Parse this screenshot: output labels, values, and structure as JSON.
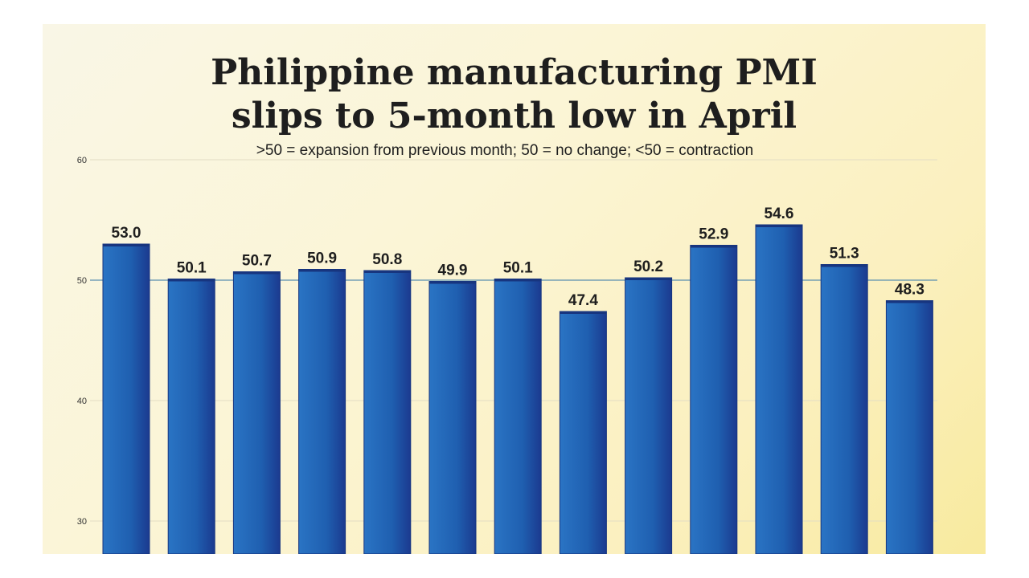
{
  "chart_data": {
    "type": "bar",
    "title": "Philippine manufacturing PMI slips to 5-month low in April",
    "title_lines": [
      "Philippine manufacturing PMI",
      "slips to 5-month low in April"
    ],
    "subtitle": ">50 = expansion from previous month; 50 = no change; <50 = contraction",
    "values": [
      53.0,
      50.1,
      50.7,
      50.9,
      50.8,
      49.9,
      50.1,
      47.4,
      50.2,
      52.9,
      54.6,
      51.3,
      48.3
    ],
    "value_labels": [
      "53.0",
      "50.1",
      "50.7",
      "50.9",
      "50.8",
      "49.9",
      "50.1",
      "47.4",
      "50.2",
      "52.9",
      "54.6",
      "51.3",
      "48.3"
    ],
    "y_ticks": [
      30,
      40,
      50,
      60
    ],
    "ylim": [
      30,
      60
    ],
    "reference_line": 50,
    "grid": true,
    "bar_color": "#1f63b3",
    "bar_color_dark": "#1b3a8f",
    "reference_line_color": "#5a8fb0"
  }
}
